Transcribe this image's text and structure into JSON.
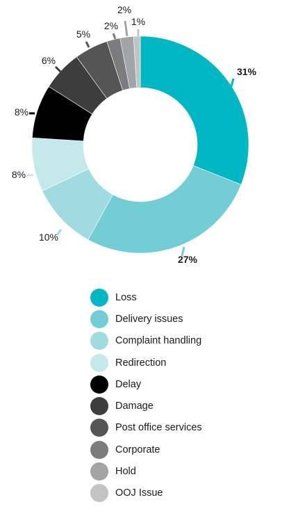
{
  "chart_data": {
    "type": "pie",
    "title": "",
    "legend_position": "bottom",
    "slices": [
      {
        "label": "Loss",
        "value": 31,
        "value_label": "31%",
        "color": "#00b7c3"
      },
      {
        "label": "Delivery issues",
        "value": 27,
        "value_label": "27%",
        "color": "#72cdd4"
      },
      {
        "label": "Complaint handling",
        "value": 10,
        "value_label": "10%",
        "color": "#9fdbe0"
      },
      {
        "label": "Redirection",
        "value": 8,
        "value_label": "8%",
        "color": "#c5e8eb"
      },
      {
        "label": "Delay",
        "value": 8,
        "value_label": "8%",
        "color": "#000000"
      },
      {
        "label": "Damage",
        "value": 6,
        "value_label": "6%",
        "color": "#3d3d3d"
      },
      {
        "label": "Post office services",
        "value": 5,
        "value_label": "5%",
        "color": "#555555"
      },
      {
        "label": "Corporate",
        "value": 2,
        "value_label": "2%",
        "color": "#7b7c7e"
      },
      {
        "label": "Hold",
        "value": 2,
        "value_label": "2%",
        "color": "#a3a4a6"
      },
      {
        "label": "OOJ Issue",
        "value": 1,
        "value_label": "1%",
        "color": "#c2c3c5"
      }
    ]
  }
}
